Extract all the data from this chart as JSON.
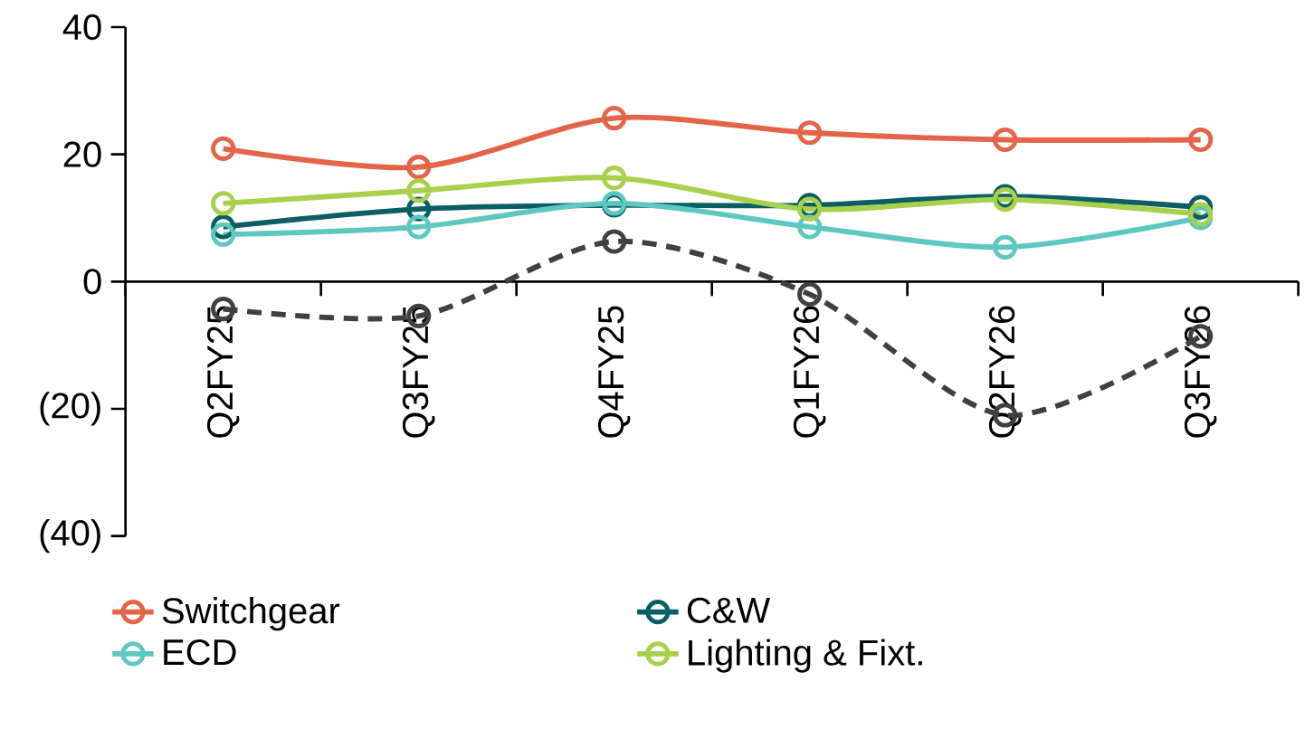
{
  "chart_data": {
    "type": "line",
    "categories": [
      "Q2FY25",
      "Q3FY25",
      "Q4FY25",
      "Q1FY26",
      "Q2FY26",
      "Q3FY26"
    ],
    "series": [
      {
        "name": "Switchgear",
        "color": "#e4644a",
        "values": [
          20.9,
          18,
          25.7,
          23.4,
          22.3,
          22.3
        ]
      },
      {
        "name": "C&W",
        "color": "#0b5e63",
        "values": [
          8.6,
          11.4,
          12,
          12,
          13.4,
          11.7
        ]
      },
      {
        "name": "ECD",
        "color": "#5ec8c0",
        "values": [
          7.4,
          8.6,
          12.3,
          8.6,
          5.4,
          10
        ]
      },
      {
        "name": "Lighting & Fixt.",
        "color": "#a8d04c",
        "values": [
          12.3,
          14.3,
          16.3,
          11.4,
          12.9,
          10.6
        ]
      },
      {
        "color": "#404040",
        "line_style": "dashed",
        "values": [
          -4.3,
          -5.4,
          6.3,
          -2,
          -21,
          -8.6
        ]
      }
    ],
    "ylim": [
      -40,
      40
    ],
    "yticks": [
      {
        "value": -40,
        "label": "(40)"
      },
      {
        "value": -20,
        "label": "(20)"
      },
      0,
      20,
      40
    ],
    "marker": "circle",
    "legend": "bottom",
    "grid": false
  }
}
